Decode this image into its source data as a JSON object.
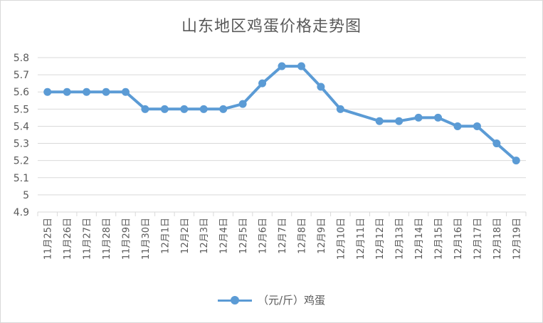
{
  "chart_data": {
    "type": "line",
    "title": "山东地区鸡蛋价格走势图",
    "xlabel": "",
    "ylabel": "",
    "ylim": [
      4.9,
      5.8
    ],
    "yticks": [
      "5.8",
      "5.7",
      "5.6",
      "5.5",
      "5.4",
      "5.3",
      "5.2",
      "5.1",
      "5",
      "4.9"
    ],
    "grid": true,
    "legend_position": "bottom",
    "categories": [
      "11月25日",
      "11月26日",
      "11月27日",
      "11月28日",
      "11月29日",
      "11月30日",
      "12月1日",
      "12月2日",
      "12月3日",
      "12月4日",
      "12月5日",
      "12月6日",
      "12月7日",
      "12月8日",
      "12月9日",
      "12月10日",
      "12月11日",
      "12月12日",
      "12月13日",
      "12月14日",
      "12月15日",
      "12月16日",
      "12月17日",
      "12月18日",
      "12月19日"
    ],
    "series": [
      {
        "name": "（元/斤）鸡蛋",
        "color": "#5b9bd5",
        "values": [
          5.6,
          5.6,
          5.6,
          5.6,
          5.6,
          5.5,
          5.5,
          5.5,
          5.5,
          5.5,
          5.53,
          5.65,
          5.75,
          5.75,
          5.63,
          5.5,
          null,
          5.43,
          5.43,
          5.45,
          5.45,
          5.4,
          5.4,
          5.3,
          5.2
        ]
      }
    ]
  }
}
